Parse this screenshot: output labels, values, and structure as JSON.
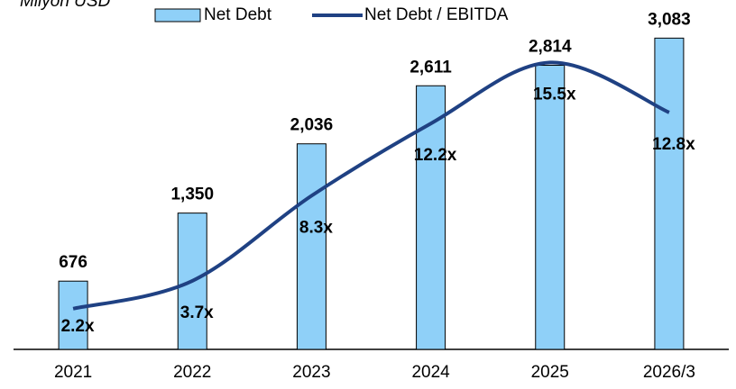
{
  "chart_data": {
    "type": "bar",
    "title": "Milyon USD",
    "categories": [
      "2021",
      "2022",
      "2023",
      "2024",
      "2025",
      "2026/3"
    ],
    "ylim": [
      0,
      3300
    ],
    "y2lim": [
      0,
      18
    ],
    "series": [
      {
        "name": "Net Debt",
        "type": "bar",
        "color": "#8fd0f8",
        "values": [
          676,
          1350,
          2036,
          2611,
          2814,
          3083
        ],
        "value_labels": [
          "676",
          "1,350",
          "2,036",
          "2,611",
          "2,814",
          "3,083"
        ]
      },
      {
        "name": "Net Debt / EBITDA",
        "type": "line",
        "axis": "y2",
        "color": "#1f4183",
        "values": [
          2.2,
          3.7,
          8.3,
          12.2,
          15.5,
          12.8
        ],
        "value_labels": [
          "2.2x",
          "3.7x",
          "8.3x",
          "12.2x",
          "15.5x",
          "12.8x"
        ]
      }
    ],
    "legend": "top"
  }
}
